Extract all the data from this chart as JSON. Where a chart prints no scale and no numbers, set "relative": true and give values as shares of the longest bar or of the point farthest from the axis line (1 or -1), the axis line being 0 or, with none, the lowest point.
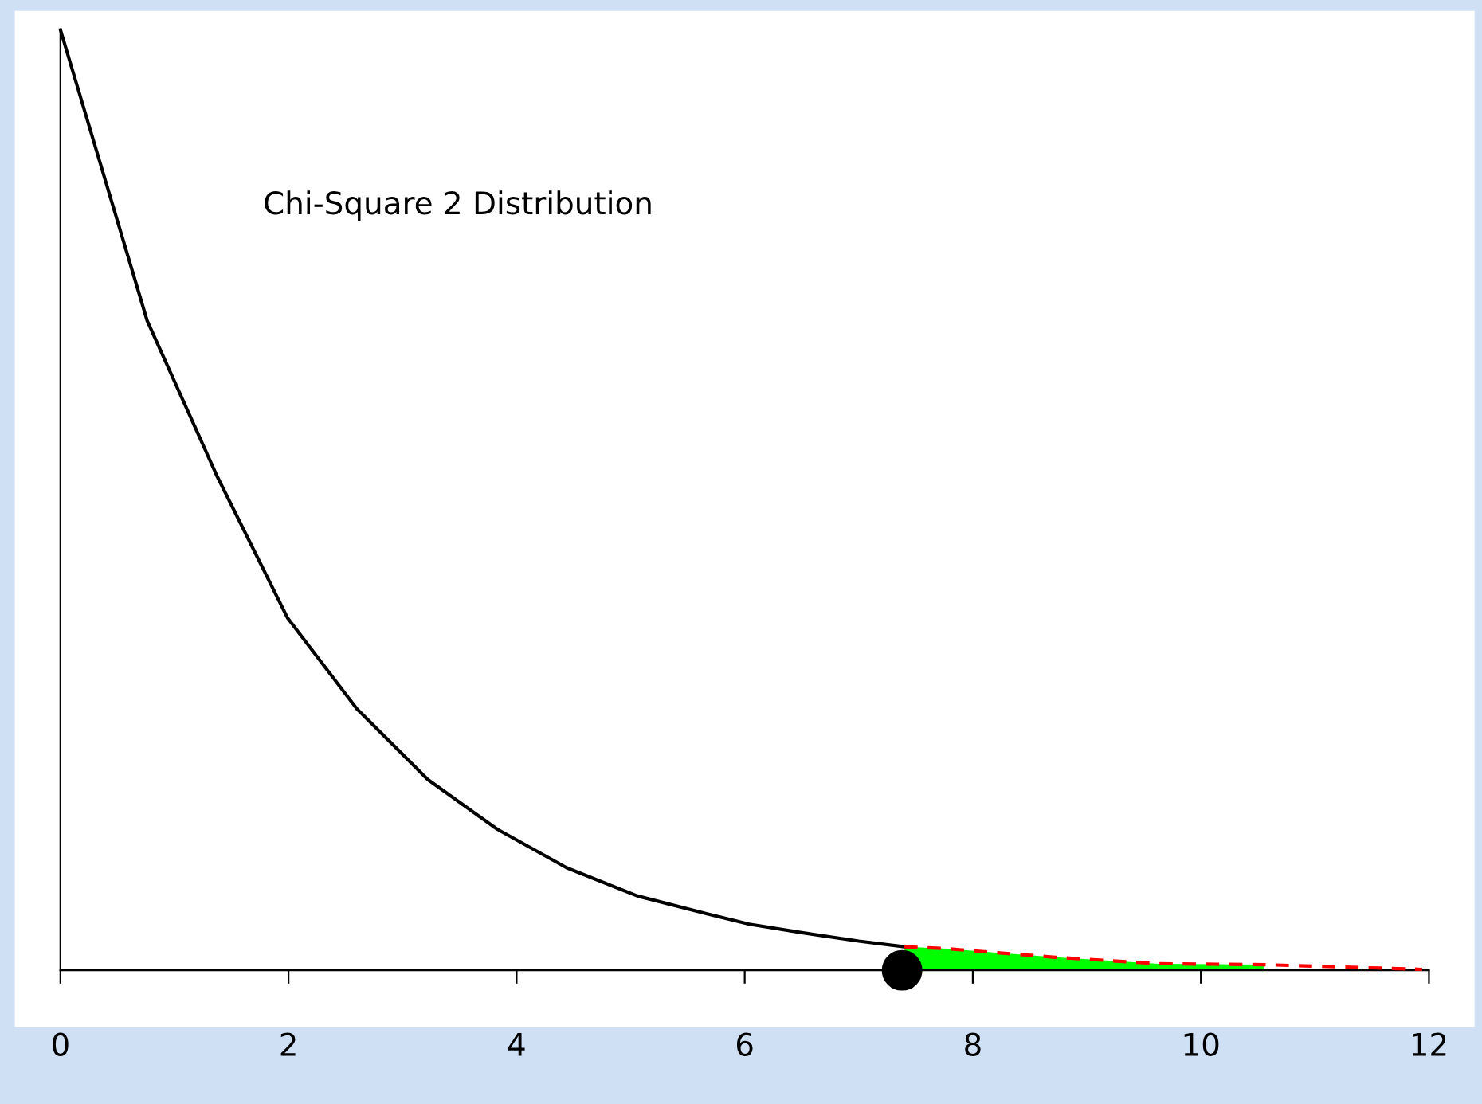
{
  "chart_data": {
    "type": "line",
    "title": "Chi-Square 2 Distribution",
    "relative": true,
    "xlim": [
      -0.4,
      12.4
    ],
    "xticks": [
      0,
      2,
      4,
      6,
      8,
      10,
      12
    ],
    "legend": false,
    "series": [
      {
        "color": "#000000",
        "x": [
          0,
          0.76,
          1.375,
          1.99,
          2.6,
          3.22,
          3.83,
          4.44,
          5.06,
          5.67,
          6.04,
          6.5,
          7.0,
          7.4
        ],
        "values": [
          1.0,
          0.691,
          0.525,
          0.375,
          0.278,
          0.203,
          0.15,
          0.109,
          0.079,
          0.06,
          0.049,
          0.04,
          0.031,
          0.025
        ]
      },
      {
        "type": "area",
        "color": "#00ff00",
        "x": [
          7.4,
          7.77,
          8.7,
          9.63,
          10.55
        ],
        "values": [
          0.025,
          0.023,
          0.014,
          0.007,
          0.006
        ]
      },
      {
        "type": "line",
        "color": "#ff0000",
        "line_style": "dashed",
        "x": [
          7.4,
          7.77,
          8.7,
          9.63,
          10.55,
          11.94
        ],
        "values": [
          0.025,
          0.023,
          0.014,
          0.007,
          0.006,
          0.001
        ]
      },
      {
        "type": "scatter",
        "color": "#000000",
        "marker": "circle",
        "x": [
          7.38
        ],
        "values": [
          0
        ]
      }
    ]
  }
}
